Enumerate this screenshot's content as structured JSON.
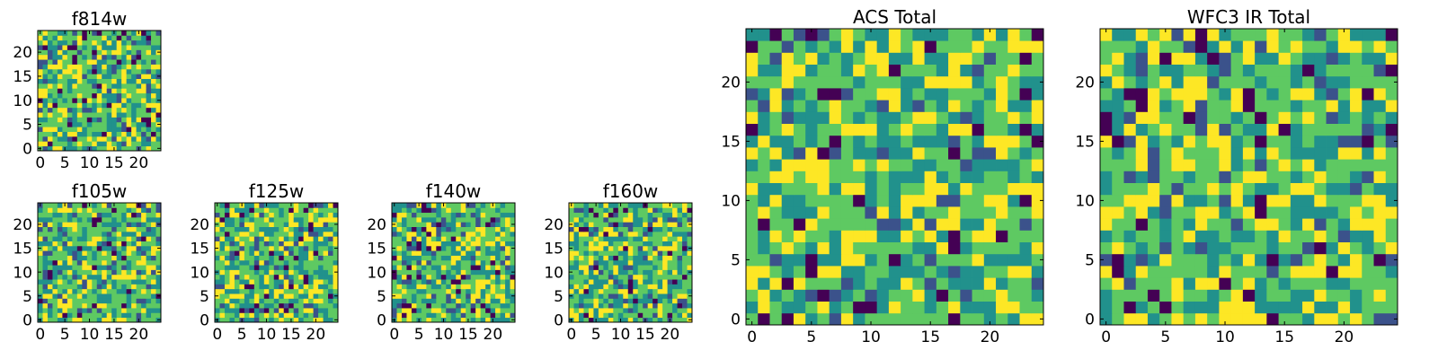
{
  "figure": {
    "title": "",
    "colormap": [
      "#440154",
      "#3b528b",
      "#21918c",
      "#5ec962",
      "#fde725"
    ]
  },
  "chart_data": [
    {
      "type": "heatmap",
      "title": "f814w",
      "grid_size": 25,
      "x_ticks": [
        "0",
        "5",
        "10",
        "15",
        "20"
      ],
      "y_ticks": [
        "0",
        "5",
        "10",
        "15",
        "20"
      ],
      "xlim": [
        -0.5,
        24.5
      ],
      "ylim": [
        -0.5,
        24.5
      ],
      "seed": 814
    },
    {
      "type": "heatmap",
      "title": "f105w",
      "grid_size": 25,
      "x_ticks": [
        "0",
        "5",
        "10",
        "15",
        "20"
      ],
      "y_ticks": [
        "0",
        "5",
        "10",
        "15",
        "20"
      ],
      "xlim": [
        -0.5,
        24.5
      ],
      "ylim": [
        -0.5,
        24.5
      ],
      "seed": 105
    },
    {
      "type": "heatmap",
      "title": "f125w",
      "grid_size": 25,
      "x_ticks": [
        "0",
        "5",
        "10",
        "15",
        "20"
      ],
      "y_ticks": [
        "0",
        "5",
        "10",
        "15",
        "20"
      ],
      "xlim": [
        -0.5,
        24.5
      ],
      "ylim": [
        -0.5,
        24.5
      ],
      "seed": 125
    },
    {
      "type": "heatmap",
      "title": "f140w",
      "grid_size": 25,
      "x_ticks": [
        "0",
        "5",
        "10",
        "15",
        "20"
      ],
      "y_ticks": [
        "0",
        "5",
        "10",
        "15",
        "20"
      ],
      "xlim": [
        -0.5,
        24.5
      ],
      "ylim": [
        -0.5,
        24.5
      ],
      "seed": 140
    },
    {
      "type": "heatmap",
      "title": "f160w",
      "grid_size": 25,
      "x_ticks": [
        "0",
        "5",
        "10",
        "15",
        "20"
      ],
      "y_ticks": [
        "0",
        "5",
        "10",
        "15",
        "20"
      ],
      "xlim": [
        -0.5,
        24.5
      ],
      "ylim": [
        -0.5,
        24.5
      ],
      "seed": 160
    },
    {
      "type": "heatmap",
      "title": "ACS Total",
      "grid_size": 25,
      "x_ticks": [
        "0",
        "5",
        "10",
        "15",
        "20"
      ],
      "y_ticks": [
        "0",
        "5",
        "10",
        "15",
        "20"
      ],
      "xlim": [
        -0.5,
        24.5
      ],
      "ylim": [
        -0.5,
        24.5
      ],
      "seed": 901
    },
    {
      "type": "heatmap",
      "title": "WFC3 IR Total",
      "grid_size": 25,
      "x_ticks": [
        "0",
        "5",
        "10",
        "15",
        "20"
      ],
      "y_ticks": [
        "0",
        "5",
        "10",
        "15",
        "20"
      ],
      "xlim": [
        -0.5,
        24.5
      ],
      "ylim": [
        -0.5,
        24.5
      ],
      "seed": 333
    }
  ]
}
